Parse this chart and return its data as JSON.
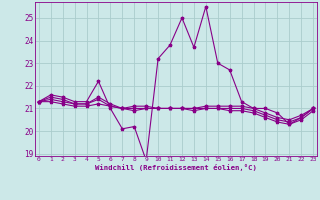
{
  "bg_color": "#cce8e8",
  "grid_color": "#aacccc",
  "line_color": "#880088",
  "x_values": [
    0,
    1,
    2,
    3,
    4,
    5,
    6,
    7,
    8,
    9,
    10,
    11,
    12,
    13,
    14,
    15,
    16,
    17,
    18,
    19,
    20,
    21,
    22,
    23
  ],
  "series1": [
    21.3,
    21.6,
    21.5,
    21.3,
    21.3,
    22.2,
    21.0,
    20.1,
    20.2,
    18.7,
    23.2,
    23.8,
    25.0,
    23.7,
    25.5,
    23.0,
    22.7,
    21.3,
    21.0,
    21.0,
    20.8,
    20.3,
    20.6,
    21.0
  ],
  "series2": [
    21.3,
    21.5,
    21.4,
    21.2,
    21.2,
    21.5,
    21.2,
    21.0,
    21.1,
    21.1,
    21.0,
    21.0,
    21.0,
    21.0,
    21.1,
    21.1,
    21.1,
    21.1,
    21.0,
    20.8,
    20.6,
    20.5,
    20.7,
    21.0
  ],
  "series3": [
    21.3,
    21.4,
    21.3,
    21.2,
    21.2,
    21.4,
    21.1,
    21.0,
    21.0,
    21.0,
    21.0,
    21.0,
    21.0,
    21.0,
    21.0,
    21.0,
    21.0,
    21.0,
    20.9,
    20.7,
    20.5,
    20.4,
    20.6,
    21.0
  ],
  "series4": [
    21.3,
    21.3,
    21.2,
    21.1,
    21.1,
    21.2,
    21.1,
    21.0,
    20.9,
    21.0,
    21.0,
    21.0,
    21.0,
    20.9,
    21.0,
    21.0,
    20.9,
    20.9,
    20.8,
    20.6,
    20.4,
    20.3,
    20.5,
    20.9
  ],
  "xlabel": "Windchill (Refroidissement éolien,°C)",
  "ylim_min": 18.9,
  "ylim_max": 25.7,
  "yticks": [
    19,
    20,
    21,
    22,
    23,
    24,
    25
  ],
  "xticks": [
    0,
    1,
    2,
    3,
    4,
    5,
    6,
    7,
    8,
    9,
    10,
    11,
    12,
    13,
    14,
    15,
    16,
    17,
    18,
    19,
    20,
    21,
    22,
    23
  ],
  "xlim_min": -0.3,
  "xlim_max": 23.3
}
